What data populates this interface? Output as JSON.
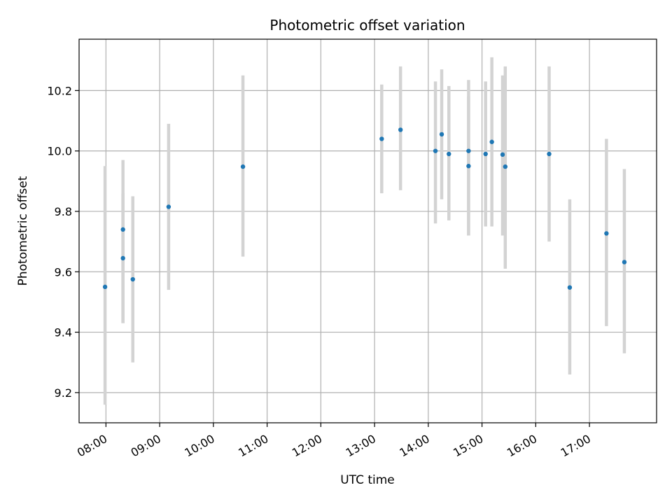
{
  "chart_data": {
    "type": "scatter",
    "title": "Photometric offset variation",
    "xlabel": "UTC time",
    "ylabel": "Photometric offset",
    "xlim": [
      "07:30",
      "18:15"
    ],
    "ylim": [
      9.1,
      10.37
    ],
    "x_ticks": [
      "08:00",
      "09:00",
      "10:00",
      "11:00",
      "12:00",
      "13:00",
      "14:00",
      "15:00",
      "16:00",
      "17:00"
    ],
    "y_ticks": [
      "9.2",
      "9.4",
      "9.6",
      "9.8",
      "10.0",
      "10.2"
    ],
    "grid": true,
    "colors": {
      "points": "#1f77b4",
      "error_bars": "#d3d3d3",
      "grid": "#b0b0b0"
    },
    "points": [
      {
        "x": "07:59",
        "y": 9.55,
        "lo": 9.16,
        "hi": 9.95
      },
      {
        "x": "08:19",
        "y": 9.74,
        "lo": 9.43,
        "hi": 9.97
      },
      {
        "x": "08:19",
        "y": 9.645,
        "lo": 9.43,
        "hi": 9.86
      },
      {
        "x": "08:30",
        "y": 9.575,
        "lo": 9.3,
        "hi": 9.85
      },
      {
        "x": "09:10",
        "y": 9.815,
        "lo": 9.54,
        "hi": 10.09
      },
      {
        "x": "10:33",
        "y": 9.948,
        "lo": 9.65,
        "hi": 10.25
      },
      {
        "x": "13:08",
        "y": 10.04,
        "lo": 9.86,
        "hi": 10.22
      },
      {
        "x": "13:29",
        "y": 10.07,
        "lo": 9.87,
        "hi": 10.28
      },
      {
        "x": "14:08",
        "y": 10.0,
        "lo": 9.76,
        "hi": 10.23
      },
      {
        "x": "14:15",
        "y": 10.055,
        "lo": 9.84,
        "hi": 10.27
      },
      {
        "x": "14:23",
        "y": 9.99,
        "lo": 9.77,
        "hi": 10.215
      },
      {
        "x": "14:45",
        "y": 10.0,
        "lo": 9.72,
        "hi": 10.235
      },
      {
        "x": "14:45",
        "y": 9.95,
        "lo": 9.72,
        "hi": 10.18
      },
      {
        "x": "15:04",
        "y": 9.99,
        "lo": 9.75,
        "hi": 10.23
      },
      {
        "x": "15:11",
        "y": 10.03,
        "lo": 9.75,
        "hi": 10.31
      },
      {
        "x": "15:23",
        "y": 9.988,
        "lo": 9.72,
        "hi": 10.25
      },
      {
        "x": "15:26",
        "y": 9.948,
        "lo": 9.61,
        "hi": 10.28
      },
      {
        "x": "16:15",
        "y": 9.99,
        "lo": 9.7,
        "hi": 10.28
      },
      {
        "x": "16:38",
        "y": 9.548,
        "lo": 9.26,
        "hi": 9.84
      },
      {
        "x": "17:19",
        "y": 9.727,
        "lo": 9.42,
        "hi": 10.04
      },
      {
        "x": "17:39",
        "y": 9.632,
        "lo": 9.33,
        "hi": 9.94
      }
    ]
  }
}
